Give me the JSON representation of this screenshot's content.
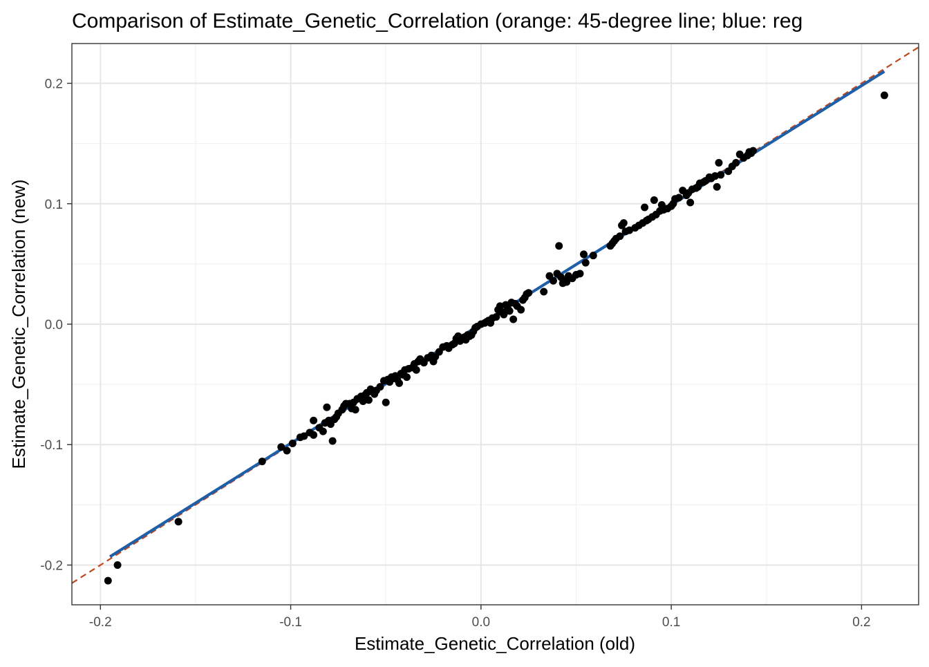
{
  "chart_data": {
    "type": "scatter",
    "title": "Comparison of Estimate_Genetic_Correlation (orange: 45-degree line; blue: reg",
    "xlabel": "Estimate_Genetic_Correlation (old)",
    "ylabel": "Estimate_Genetic_Correlation (new)",
    "xlim": [
      -0.215,
      0.23
    ],
    "ylim": [
      -0.233,
      0.233
    ],
    "x_ticks": [
      -0.2,
      -0.1,
      0.0,
      0.1,
      0.2
    ],
    "x_tick_labels": [
      "-0.2",
      "-0.1",
      "0.0",
      "0.1",
      "0.2"
    ],
    "y_ticks": [
      -0.2,
      -0.1,
      0.0,
      0.1,
      0.2
    ],
    "y_tick_labels": [
      "-0.2",
      "-0.1",
      "0.0",
      "0.1",
      "0.2"
    ],
    "grid": true,
    "colors": {
      "points": "#000000",
      "identity_line": "#c0461b",
      "regression_line": "#1f5fa8",
      "grid_major": "#e6e6e6",
      "grid_minor": "#f2f2f2",
      "panel_border": "#333333"
    },
    "identity_line": {
      "slope": 1,
      "intercept": 0,
      "style": "dashed"
    },
    "regression_line": {
      "slope": 0.99,
      "intercept": 0.0,
      "x_range": [
        -0.195,
        0.212
      ]
    },
    "points": [
      {
        "x": -0.196,
        "y": -0.213
      },
      {
        "x": -0.191,
        "y": -0.2
      },
      {
        "x": -0.159,
        "y": -0.164
      },
      {
        "x": -0.115,
        "y": -0.114
      },
      {
        "x": -0.105,
        "y": -0.102
      },
      {
        "x": -0.102,
        "y": -0.105
      },
      {
        "x": -0.099,
        "y": -0.099
      },
      {
        "x": -0.095,
        "y": -0.094
      },
      {
        "x": -0.093,
        "y": -0.093
      },
      {
        "x": -0.09,
        "y": -0.09
      },
      {
        "x": -0.088,
        "y": -0.092
      },
      {
        "x": -0.088,
        "y": -0.08
      },
      {
        "x": -0.085,
        "y": -0.086
      },
      {
        "x": -0.083,
        "y": -0.089
      },
      {
        "x": -0.082,
        "y": -0.082
      },
      {
        "x": -0.081,
        "y": -0.069
      },
      {
        "x": -0.08,
        "y": -0.08
      },
      {
        "x": -0.079,
        "y": -0.083
      },
      {
        "x": -0.078,
        "y": -0.097
      },
      {
        "x": -0.077,
        "y": -0.079
      },
      {
        "x": -0.076,
        "y": -0.077
      },
      {
        "x": -0.075,
        "y": -0.074
      },
      {
        "x": -0.073,
        "y": -0.071
      },
      {
        "x": -0.072,
        "y": -0.068
      },
      {
        "x": -0.071,
        "y": -0.066
      },
      {
        "x": -0.069,
        "y": -0.066
      },
      {
        "x": -0.068,
        "y": -0.07
      },
      {
        "x": -0.067,
        "y": -0.065
      },
      {
        "x": -0.066,
        "y": -0.071
      },
      {
        "x": -0.065,
        "y": -0.062
      },
      {
        "x": -0.063,
        "y": -0.06
      },
      {
        "x": -0.062,
        "y": -0.064
      },
      {
        "x": -0.061,
        "y": -0.059
      },
      {
        "x": -0.06,
        "y": -0.057
      },
      {
        "x": -0.059,
        "y": -0.063
      },
      {
        "x": -0.058,
        "y": -0.054
      },
      {
        "x": -0.057,
        "y": -0.056
      },
      {
        "x": -0.056,
        "y": -0.058
      },
      {
        "x": -0.055,
        "y": -0.055
      },
      {
        "x": -0.053,
        "y": -0.052
      },
      {
        "x": -0.051,
        "y": -0.047
      },
      {
        "x": -0.05,
        "y": -0.065
      },
      {
        "x": -0.049,
        "y": -0.046
      },
      {
        "x": -0.048,
        "y": -0.048
      },
      {
        "x": -0.047,
        "y": -0.044
      },
      {
        "x": -0.046,
        "y": -0.045
      },
      {
        "x": -0.045,
        "y": -0.043
      },
      {
        "x": -0.044,
        "y": -0.046
      },
      {
        "x": -0.043,
        "y": -0.049
      },
      {
        "x": -0.042,
        "y": -0.041
      },
      {
        "x": -0.041,
        "y": -0.042
      },
      {
        "x": -0.04,
        "y": -0.038
      },
      {
        "x": -0.039,
        "y": -0.044
      },
      {
        "x": -0.038,
        "y": -0.037
      },
      {
        "x": -0.036,
        "y": -0.036
      },
      {
        "x": -0.035,
        "y": -0.033
      },
      {
        "x": -0.034,
        "y": -0.038
      },
      {
        "x": -0.033,
        "y": -0.031
      },
      {
        "x": -0.032,
        "y": -0.029
      },
      {
        "x": -0.03,
        "y": -0.032
      },
      {
        "x": -0.028,
        "y": -0.028
      },
      {
        "x": -0.026,
        "y": -0.026
      },
      {
        "x": -0.025,
        "y": -0.031
      },
      {
        "x": -0.024,
        "y": -0.027
      },
      {
        "x": -0.022,
        "y": -0.023
      },
      {
        "x": -0.02,
        "y": -0.019
      },
      {
        "x": -0.018,
        "y": -0.018
      },
      {
        "x": -0.017,
        "y": -0.02
      },
      {
        "x": -0.015,
        "y": -0.017
      },
      {
        "x": -0.014,
        "y": -0.016
      },
      {
        "x": -0.013,
        "y": -0.012
      },
      {
        "x": -0.012,
        "y": -0.01
      },
      {
        "x": -0.011,
        "y": -0.014
      },
      {
        "x": -0.01,
        "y": -0.012
      },
      {
        "x": -0.009,
        "y": -0.011
      },
      {
        "x": -0.008,
        "y": -0.013
      },
      {
        "x": -0.007,
        "y": -0.009
      },
      {
        "x": -0.006,
        "y": -0.01
      },
      {
        "x": -0.005,
        "y": -0.009
      },
      {
        "x": -0.004,
        "y": -0.006
      },
      {
        "x": -0.003,
        "y": -0.003
      },
      {
        "x": -0.002,
        "y": -0.002
      },
      {
        "x": 0.0,
        "y": 0.0
      },
      {
        "x": 0.002,
        "y": 0.001
      },
      {
        "x": 0.003,
        "y": 0.002
      },
      {
        "x": 0.004,
        "y": 0.003
      },
      {
        "x": 0.005,
        "y": 0.001
      },
      {
        "x": 0.006,
        "y": 0.005
      },
      {
        "x": 0.008,
        "y": 0.006
      },
      {
        "x": 0.009,
        "y": 0.012
      },
      {
        "x": 0.01,
        "y": 0.015
      },
      {
        "x": 0.011,
        "y": 0.01
      },
      {
        "x": 0.012,
        "y": 0.008
      },
      {
        "x": 0.013,
        "y": 0.016
      },
      {
        "x": 0.014,
        "y": 0.013
      },
      {
        "x": 0.015,
        "y": 0.011
      },
      {
        "x": 0.016,
        "y": 0.018
      },
      {
        "x": 0.017,
        "y": 0.004
      },
      {
        "x": 0.018,
        "y": 0.017
      },
      {
        "x": 0.019,
        "y": 0.015
      },
      {
        "x": 0.021,
        "y": 0.012
      },
      {
        "x": 0.022,
        "y": 0.02
      },
      {
        "x": 0.023,
        "y": 0.022
      },
      {
        "x": 0.024,
        "y": 0.025
      },
      {
        "x": 0.025,
        "y": 0.026
      },
      {
        "x": 0.033,
        "y": 0.027
      },
      {
        "x": 0.036,
        "y": 0.04
      },
      {
        "x": 0.038,
        "y": 0.036
      },
      {
        "x": 0.04,
        "y": 0.042
      },
      {
        "x": 0.041,
        "y": 0.065
      },
      {
        "x": 0.042,
        "y": 0.039
      },
      {
        "x": 0.043,
        "y": 0.034
      },
      {
        "x": 0.044,
        "y": 0.036
      },
      {
        "x": 0.045,
        "y": 0.035
      },
      {
        "x": 0.046,
        "y": 0.04
      },
      {
        "x": 0.048,
        "y": 0.038
      },
      {
        "x": 0.05,
        "y": 0.041
      },
      {
        "x": 0.052,
        "y": 0.042
      },
      {
        "x": 0.054,
        "y": 0.058
      },
      {
        "x": 0.055,
        "y": 0.051
      },
      {
        "x": 0.059,
        "y": 0.057
      },
      {
        "x": 0.068,
        "y": 0.065
      },
      {
        "x": 0.069,
        "y": 0.067
      },
      {
        "x": 0.07,
        "y": 0.069
      },
      {
        "x": 0.071,
        "y": 0.071
      },
      {
        "x": 0.073,
        "y": 0.073
      },
      {
        "x": 0.074,
        "y": 0.082
      },
      {
        "x": 0.075,
        "y": 0.084
      },
      {
        "x": 0.076,
        "y": 0.077
      },
      {
        "x": 0.078,
        "y": 0.078
      },
      {
        "x": 0.081,
        "y": 0.08
      },
      {
        "x": 0.083,
        "y": 0.082
      },
      {
        "x": 0.085,
        "y": 0.084
      },
      {
        "x": 0.086,
        "y": 0.097
      },
      {
        "x": 0.087,
        "y": 0.086
      },
      {
        "x": 0.088,
        "y": 0.087
      },
      {
        "x": 0.09,
        "y": 0.089
      },
      {
        "x": 0.091,
        "y": 0.103
      },
      {
        "x": 0.092,
        "y": 0.091
      },
      {
        "x": 0.094,
        "y": 0.094
      },
      {
        "x": 0.095,
        "y": 0.099
      },
      {
        "x": 0.096,
        "y": 0.095
      },
      {
        "x": 0.098,
        "y": 0.096
      },
      {
        "x": 0.1,
        "y": 0.098
      },
      {
        "x": 0.101,
        "y": 0.1
      },
      {
        "x": 0.102,
        "y": 0.104
      },
      {
        "x": 0.104,
        "y": 0.105
      },
      {
        "x": 0.106,
        "y": 0.111
      },
      {
        "x": 0.108,
        "y": 0.107
      },
      {
        "x": 0.109,
        "y": 0.109
      },
      {
        "x": 0.11,
        "y": 0.101
      },
      {
        "x": 0.111,
        "y": 0.112
      },
      {
        "x": 0.113,
        "y": 0.113
      },
      {
        "x": 0.114,
        "y": 0.114
      },
      {
        "x": 0.115,
        "y": 0.117
      },
      {
        "x": 0.117,
        "y": 0.118
      },
      {
        "x": 0.118,
        "y": 0.119
      },
      {
        "x": 0.12,
        "y": 0.122
      },
      {
        "x": 0.121,
        "y": 0.121
      },
      {
        "x": 0.123,
        "y": 0.123
      },
      {
        "x": 0.124,
        "y": 0.114
      },
      {
        "x": 0.125,
        "y": 0.134
      },
      {
        "x": 0.126,
        "y": 0.124
      },
      {
        "x": 0.13,
        "y": 0.127
      },
      {
        "x": 0.132,
        "y": 0.131
      },
      {
        "x": 0.134,
        "y": 0.134
      },
      {
        "x": 0.136,
        "y": 0.141
      },
      {
        "x": 0.138,
        "y": 0.138
      },
      {
        "x": 0.14,
        "y": 0.14
      },
      {
        "x": 0.141,
        "y": 0.143
      },
      {
        "x": 0.142,
        "y": 0.142
      },
      {
        "x": 0.143,
        "y": 0.144
      },
      {
        "x": 0.212,
        "y": 0.19
      }
    ]
  }
}
